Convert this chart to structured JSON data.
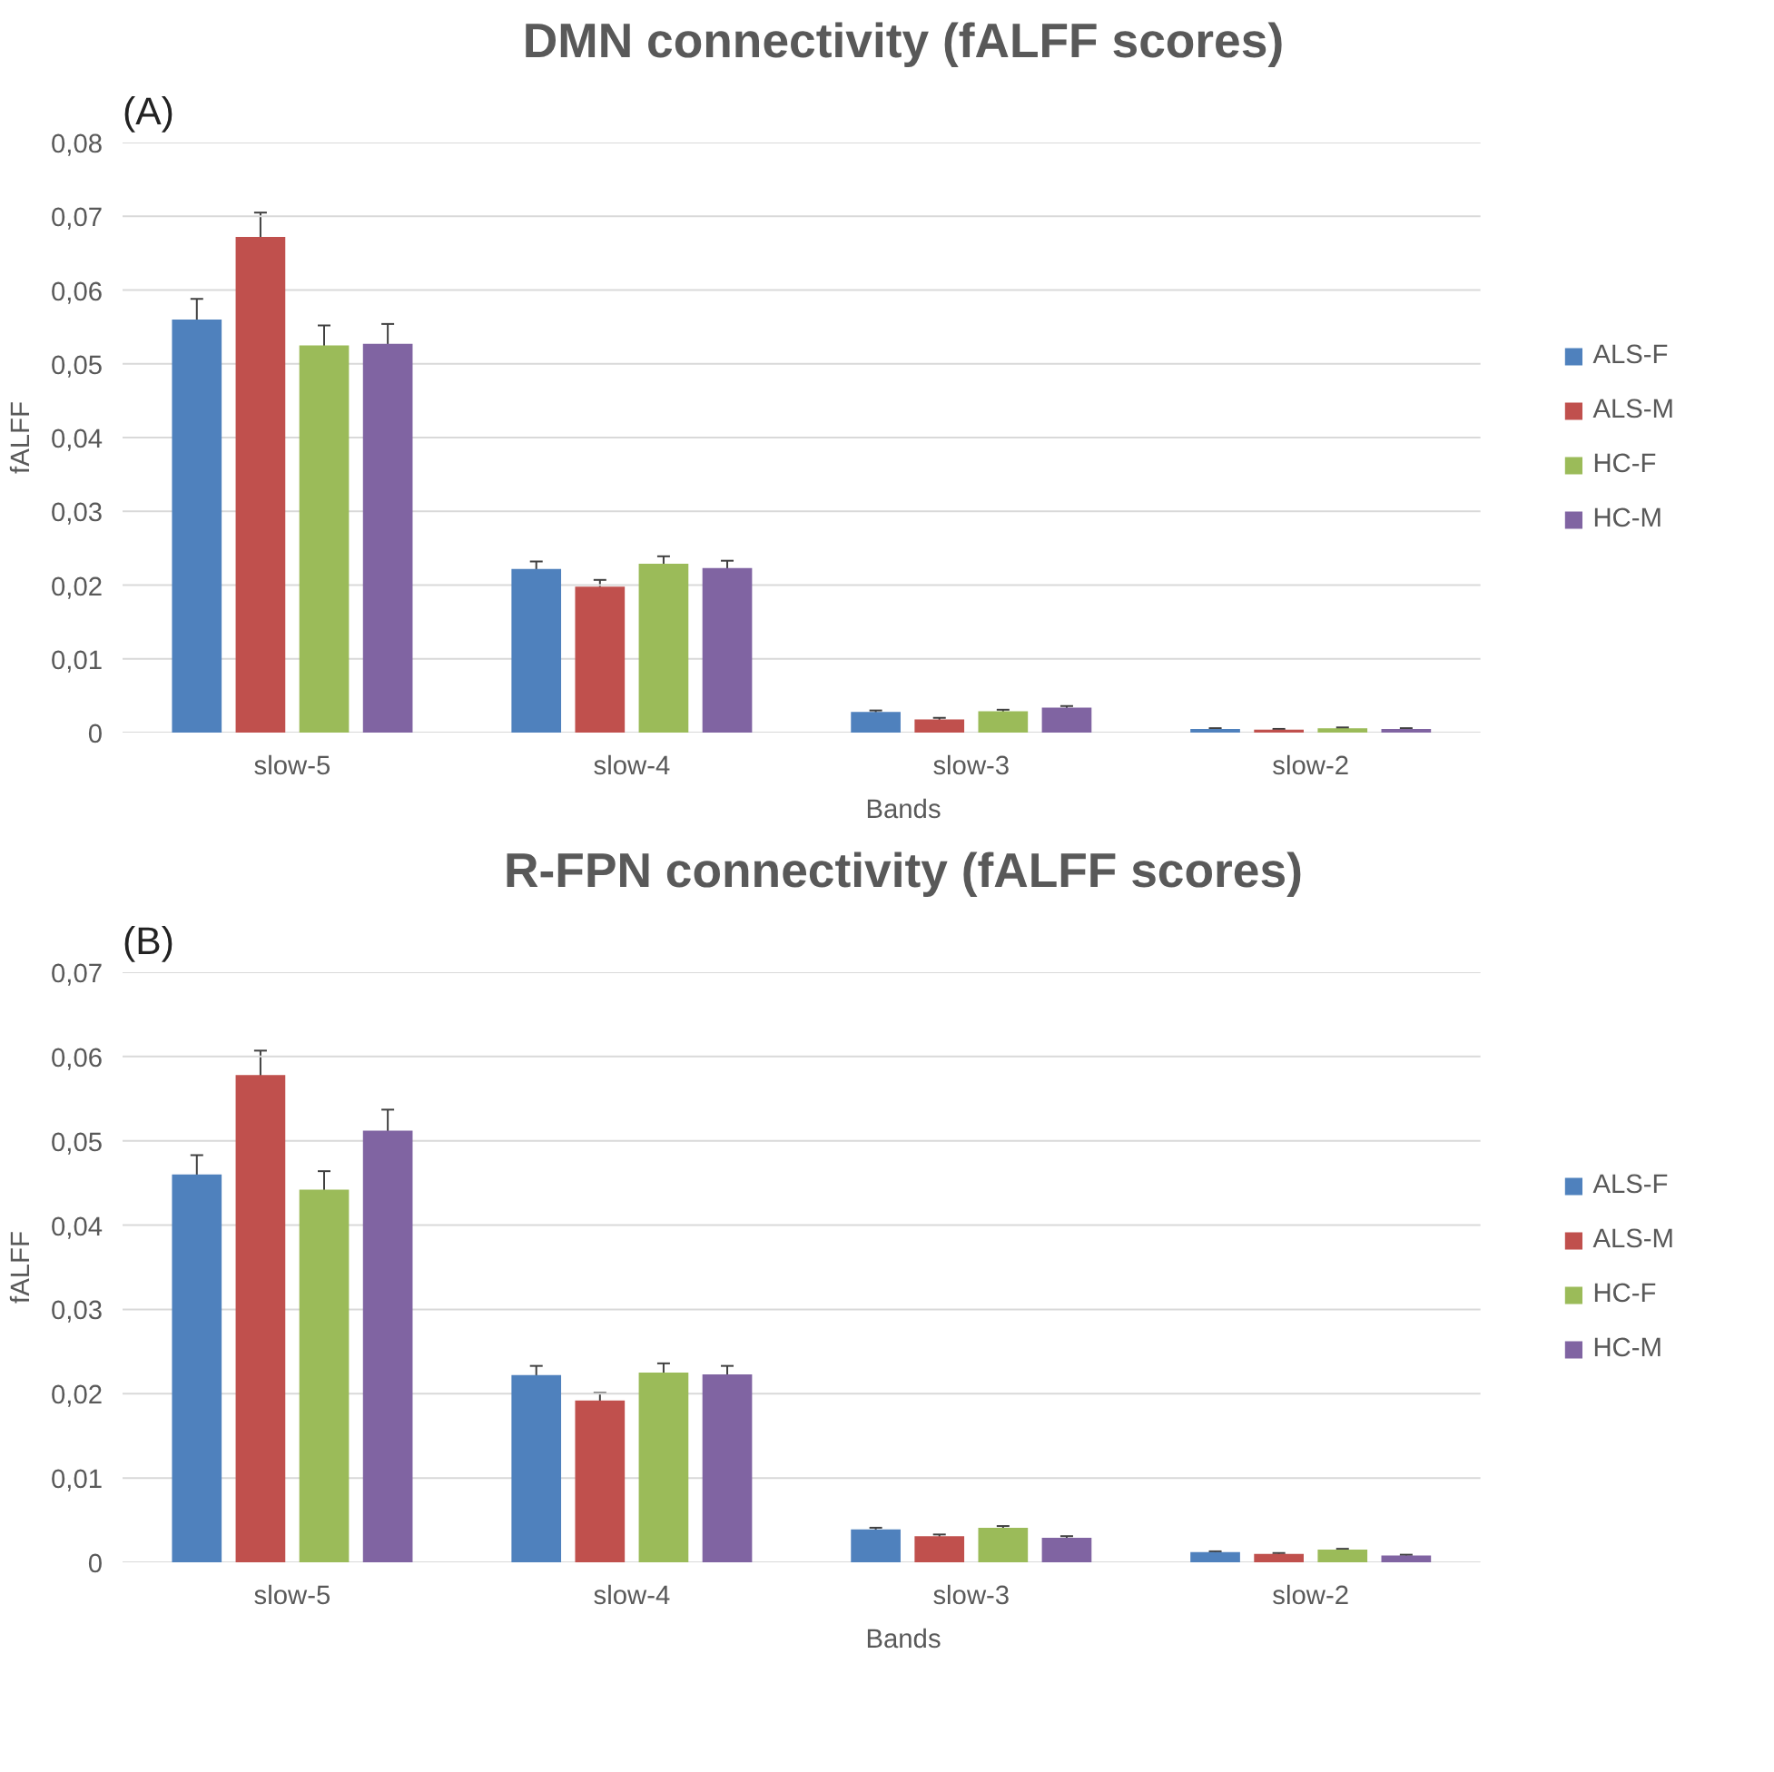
{
  "chart_data": [
    {
      "type": "bar",
      "title": "DMN connectivity (fALFF scores)",
      "xlabel": "Bands",
      "ylabel": "fALFF",
      "annotations": [
        "(A)"
      ],
      "categories": [
        "slow-5",
        "slow-4",
        "slow-3",
        "slow-2"
      ],
      "series": [
        {
          "name": "ALS-F",
          "color": "#4f81bd",
          "values": [
            0.056,
            0.0222,
            0.0028,
            0.0005
          ],
          "errors": [
            0.0028,
            0.001,
            0.0002,
            0.0001
          ]
        },
        {
          "name": "ALS-M",
          "color": "#c0504d",
          "values": [
            0.0672,
            0.0198,
            0.0018,
            0.0004
          ],
          "errors": [
            0.0033,
            0.0009,
            0.0002,
            0.0001
          ]
        },
        {
          "name": "HC-F",
          "color": "#9bbb59",
          "values": [
            0.0525,
            0.0229,
            0.0029,
            0.0006
          ],
          "errors": [
            0.0027,
            0.001,
            0.0002,
            0.0001
          ]
        },
        {
          "name": "HC-M",
          "color": "#8064a2",
          "values": [
            0.0527,
            0.0223,
            0.0034,
            0.0005
          ],
          "errors": [
            0.0027,
            0.001,
            0.0002,
            0.0001
          ]
        }
      ],
      "ylim": [
        0,
        0.08
      ],
      "yticks": [
        {
          "value": 0,
          "label": "0"
        },
        {
          "value": 0.01,
          "label": "0,01"
        },
        {
          "value": 0.02,
          "label": "0,02"
        },
        {
          "value": 0.03,
          "label": "0,03"
        },
        {
          "value": 0.04,
          "label": "0,04"
        },
        {
          "value": 0.05,
          "label": "0,05"
        },
        {
          "value": 0.06,
          "label": "0,06"
        },
        {
          "value": 0.07,
          "label": "0,07"
        },
        {
          "value": 0.08,
          "label": "0,08"
        }
      ],
      "grid": "y",
      "legend": "right"
    },
    {
      "type": "bar",
      "title": "R-FPN connectivity (fALFF scores)",
      "xlabel": "Bands",
      "ylabel": "fALFF",
      "annotations": [
        "(B)"
      ],
      "categories": [
        "slow-5",
        "slow-4",
        "slow-3",
        "slow-2"
      ],
      "series": [
        {
          "name": "ALS-F",
          "color": "#4f81bd",
          "values": [
            0.046,
            0.0222,
            0.0039,
            0.0012
          ],
          "errors": [
            0.0023,
            0.0011,
            0.0002,
            0.0001
          ]
        },
        {
          "name": "ALS-M",
          "color": "#c0504d",
          "values": [
            0.0578,
            0.0192,
            0.0031,
            0.001
          ],
          "errors": [
            0.0029,
            0.0009,
            0.0002,
            0.0001
          ]
        },
        {
          "name": "HC-F",
          "color": "#9bbb59",
          "values": [
            0.0442,
            0.0225,
            0.0041,
            0.0015
          ],
          "errors": [
            0.0022,
            0.0011,
            0.0002,
            0.0001
          ]
        },
        {
          "name": "HC-M",
          "color": "#8064a2",
          "values": [
            0.0512,
            0.0223,
            0.0029,
            0.0008
          ],
          "errors": [
            0.0025,
            0.001,
            0.0002,
            0.0001
          ]
        }
      ],
      "ylim": [
        0,
        0.07
      ],
      "yticks": [
        {
          "value": 0,
          "label": "0"
        },
        {
          "value": 0.01,
          "label": "0,01"
        },
        {
          "value": 0.02,
          "label": "0,02"
        },
        {
          "value": 0.03,
          "label": "0,03"
        },
        {
          "value": 0.04,
          "label": "0,04"
        },
        {
          "value": 0.05,
          "label": "0,05"
        },
        {
          "value": 0.06,
          "label": "0,06"
        },
        {
          "value": 0.07,
          "label": "0,07"
        }
      ],
      "grid": "y",
      "legend": "right"
    }
  ]
}
